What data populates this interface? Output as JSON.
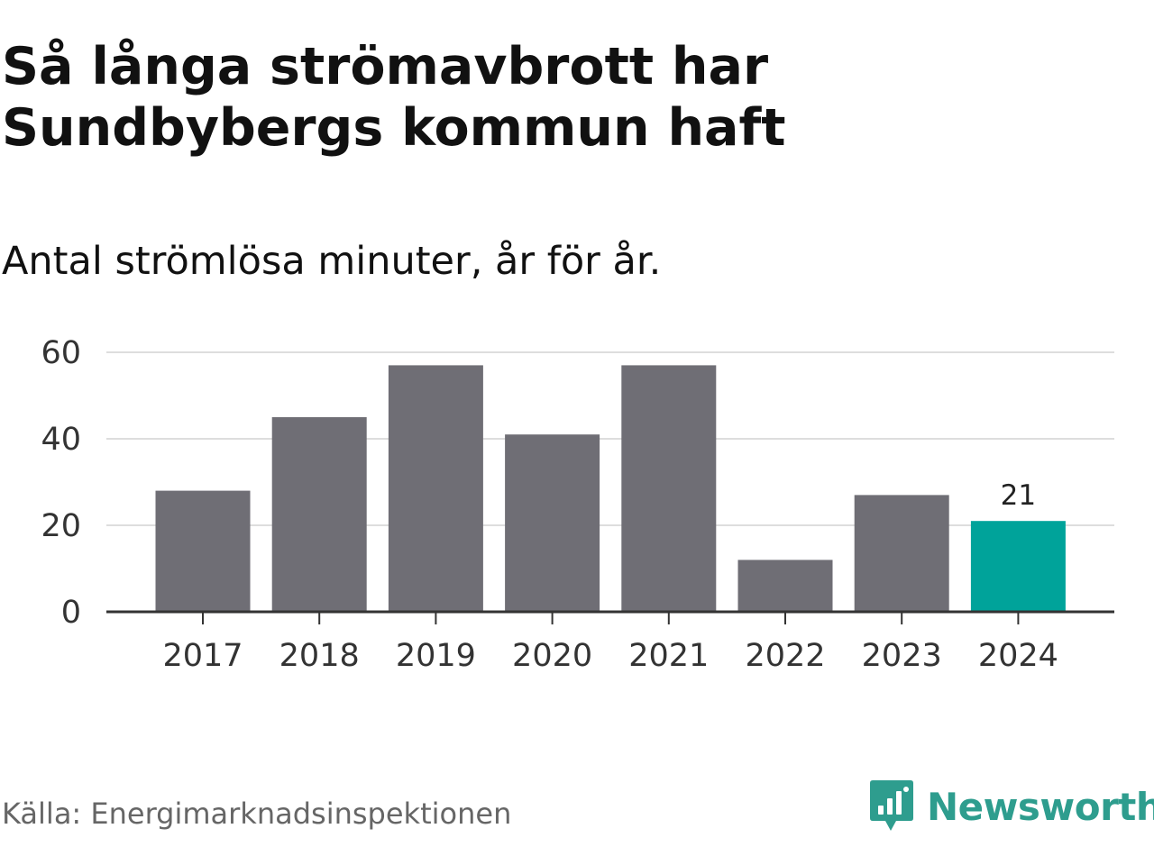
{
  "title": "Så långa strömavbrott har Sundbybergs kommun haft",
  "subtitle": "Antal strömlösa minuter, år för år.",
  "source": "Källa: Energimarknadsinspektionen",
  "brand": "Newsworthy",
  "colors": {
    "bar": "#6f6e75",
    "highlight": "#00a39a",
    "grid": "#dddddd",
    "axis": "#333333",
    "brand": "#2e9d8e"
  },
  "chart_data": {
    "type": "bar",
    "categories": [
      "2017",
      "2018",
      "2019",
      "2020",
      "2021",
      "2022",
      "2023",
      "2024"
    ],
    "values": [
      28,
      45,
      57,
      41,
      57,
      12,
      27,
      21
    ],
    "highlight_index": 7,
    "data_labels": [
      {
        "index": 7,
        "text": "21"
      }
    ],
    "yticks": [
      0,
      20,
      40,
      60
    ],
    "ylim": [
      0,
      60
    ],
    "grid": true,
    "xlabel": "",
    "ylabel": ""
  }
}
